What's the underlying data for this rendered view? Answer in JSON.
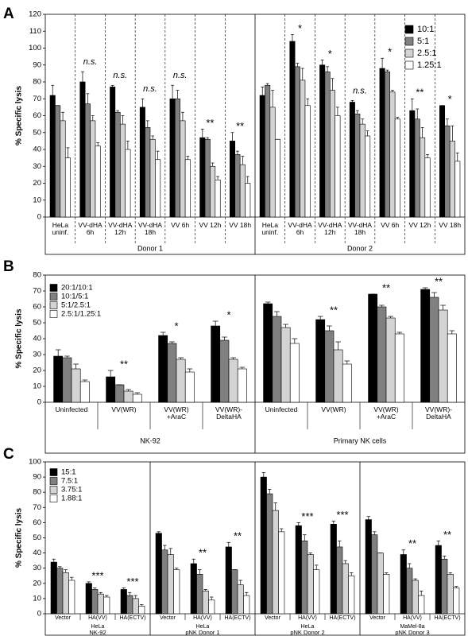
{
  "chart_data": [
    {
      "type": "bar",
      "panel": "A",
      "y_label": "% Specific lysis",
      "ylim": [
        0,
        120
      ],
      "yticks": [
        0,
        10,
        20,
        30,
        40,
        50,
        60,
        70,
        80,
        90,
        100,
        110,
        120
      ],
      "legend": "upper right",
      "groups": [
        {
          "name": "Donor 1",
          "categories": [
            "HeLa\nuninf.",
            "VV-dHA\n6h",
            "VV-dHA\n12h",
            "VV-dHA\n18h",
            "VV 6h",
            "VV 12h",
            "VV 18h"
          ],
          "annotations": [
            null,
            "n.s.",
            "n.s.",
            "n.s.",
            "n.s.",
            "**",
            "**"
          ]
        },
        {
          "name": "Donor 2",
          "categories": [
            "HeLa\nuninf.",
            "VV-dHA\n6h",
            "VV-dHA\n12h",
            "VV-dHA\n18h",
            "VV 6h",
            "VV 12h",
            "VV 18h"
          ],
          "annotations": [
            null,
            "*",
            "*",
            "n.s.",
            "*",
            "**",
            "*"
          ]
        }
      ],
      "series": [
        {
          "name": "10:1",
          "color": "#000000",
          "values": [
            72,
            80,
            77,
            65,
            70,
            47,
            45,
            72,
            104,
            90,
            68,
            88,
            63,
            66
          ],
          "errors": [
            6,
            6,
            1,
            5,
            8,
            5,
            5,
            5,
            4,
            3,
            1,
            6,
            7,
            0
          ]
        },
        {
          "name": "5:1",
          "color": "#808080",
          "values": [
            66,
            67,
            62,
            53,
            70,
            46,
            37,
            78,
            89,
            86,
            61,
            86,
            58,
            54
          ],
          "errors": [
            0,
            6,
            1,
            4,
            5,
            1,
            2,
            1,
            2,
            3,
            2,
            1,
            6,
            4
          ]
        },
        {
          "name": "2.5:1",
          "color": "#d3d3d3",
          "values": [
            57,
            57,
            55,
            46,
            57,
            30,
            31,
            65,
            81,
            75,
            55,
            74,
            47,
            45
          ],
          "errors": [
            5,
            3,
            5,
            2,
            5,
            2,
            5,
            10,
            7,
            7,
            3,
            1,
            6,
            9
          ]
        },
        {
          "name": "1.25:1",
          "color": "#ffffff",
          "values": [
            35,
            42,
            40,
            34,
            34,
            22,
            20,
            46,
            66,
            60,
            48,
            58,
            35,
            33
          ],
          "errors": [
            6,
            2,
            5,
            5,
            2,
            2,
            4,
            0,
            4,
            5,
            3,
            1,
            2,
            5
          ]
        }
      ]
    },
    {
      "type": "bar",
      "panel": "B",
      "y_label": "% Specific lysis",
      "ylim": [
        0,
        80
      ],
      "yticks": [
        0,
        10,
        20,
        30,
        40,
        50,
        60,
        70,
        80
      ],
      "legend": "upper left",
      "groups": [
        {
          "name": "NK-92",
          "categories": [
            "Uninfected",
            "VV(WR)",
            "VV(WR)\n+AraC",
            "VV(WR)-\nDeltaHA"
          ],
          "annotations": [
            null,
            "**",
            "*",
            "*"
          ]
        },
        {
          "name": "Primary NK cells",
          "categories": [
            "Uninfected",
            "VV(WR)",
            "VV(WR)\n+AraC",
            "VV(WR)-\nDeltaHA"
          ],
          "annotations": [
            null,
            "**",
            "**",
            "**"
          ]
        }
      ],
      "series": [
        {
          "name": "20:1/10:1",
          "color": "#000000",
          "values": [
            29,
            16,
            42,
            48,
            62,
            52,
            68,
            71
          ],
          "errors": [
            4,
            4,
            2,
            3,
            1,
            2,
            0,
            1
          ]
        },
        {
          "name": "10:1/5:1",
          "color": "#808080",
          "values": [
            28,
            11,
            37,
            39,
            54,
            45,
            60,
            66
          ],
          "errors": [
            1,
            0,
            1,
            2,
            3,
            3,
            1,
            3
          ]
        },
        {
          "name": "5:1/2.5:1",
          "color": "#d3d3d3",
          "values": [
            21,
            7,
            27,
            27,
            47,
            33,
            53,
            58
          ],
          "errors": [
            3,
            1,
            1,
            1,
            2,
            5,
            1,
            3
          ]
        },
        {
          "name": "2.5:1/1.25:1",
          "color": "#ffffff",
          "values": [
            13,
            5,
            19,
            21,
            37,
            24,
            43,
            43
          ],
          "errors": [
            1,
            1,
            2,
            1,
            3,
            2,
            1,
            2
          ]
        }
      ]
    },
    {
      "type": "bar",
      "panel": "C",
      "y_label": "% Specific lysis",
      "ylim": [
        0,
        100
      ],
      "yticks": [
        0,
        10,
        20,
        30,
        40,
        50,
        60,
        70,
        80,
        90,
        100
      ],
      "legend": "upper left",
      "groups": [
        {
          "name": "NK-92",
          "cell_line": "HeLa",
          "categories": [
            "Vector",
            "HA(VV)",
            "HA(ECTV)"
          ],
          "annotations": [
            null,
            "***",
            "***"
          ]
        },
        {
          "name": "pNK Donor 1",
          "cell_line": "HeLa",
          "categories": [
            "Vector",
            "HA(VV)",
            "HA(ECTV)"
          ],
          "annotations": [
            null,
            "**",
            "**"
          ]
        },
        {
          "name": "pNK Donor 2",
          "cell_line": "HeLa",
          "categories": [
            "Vector",
            "HA(VV)",
            "HA(ECTV)"
          ],
          "annotations": [
            null,
            "***",
            "***"
          ]
        },
        {
          "name": "pNK Donor 3",
          "cell_line": "MaMel-8a",
          "categories": [
            "Vector",
            "HA(VV)",
            "HA(ECTV)"
          ],
          "annotations": [
            null,
            "**",
            "**"
          ]
        }
      ],
      "series": [
        {
          "name": "15:1",
          "color": "#000000",
          "values": [
            34,
            20,
            16,
            53,
            33,
            44,
            90,
            58,
            59,
            62,
            39,
            45
          ],
          "errors": [
            2,
            1,
            1,
            1,
            3,
            3,
            3,
            2,
            2,
            2,
            3,
            3
          ]
        },
        {
          "name": "7.5:1",
          "color": "#808080",
          "values": [
            30,
            16,
            12,
            42,
            26,
            29,
            79,
            48,
            44,
            52,
            30,
            36
          ],
          "errors": [
            1,
            1,
            2,
            3,
            3,
            0,
            3,
            4,
            4,
            2,
            3,
            2
          ]
        },
        {
          "name": "3.75:1",
          "color": "#d3d3d3",
          "values": [
            27,
            13,
            10,
            39,
            15,
            19,
            68,
            39,
            33,
            40,
            22,
            26
          ],
          "errors": [
            2,
            1,
            2,
            4,
            1,
            3,
            5,
            1,
            2,
            0,
            1,
            1
          ]
        },
        {
          "name": "1.88:1",
          "color": "#ffffff",
          "values": [
            22,
            11,
            5,
            29,
            9,
            12,
            54,
            29,
            25,
            26,
            12,
            17
          ],
          "errors": [
            2,
            1,
            1,
            1,
            2,
            2,
            2,
            3,
            2,
            1,
            3,
            1
          ]
        }
      ]
    }
  ]
}
